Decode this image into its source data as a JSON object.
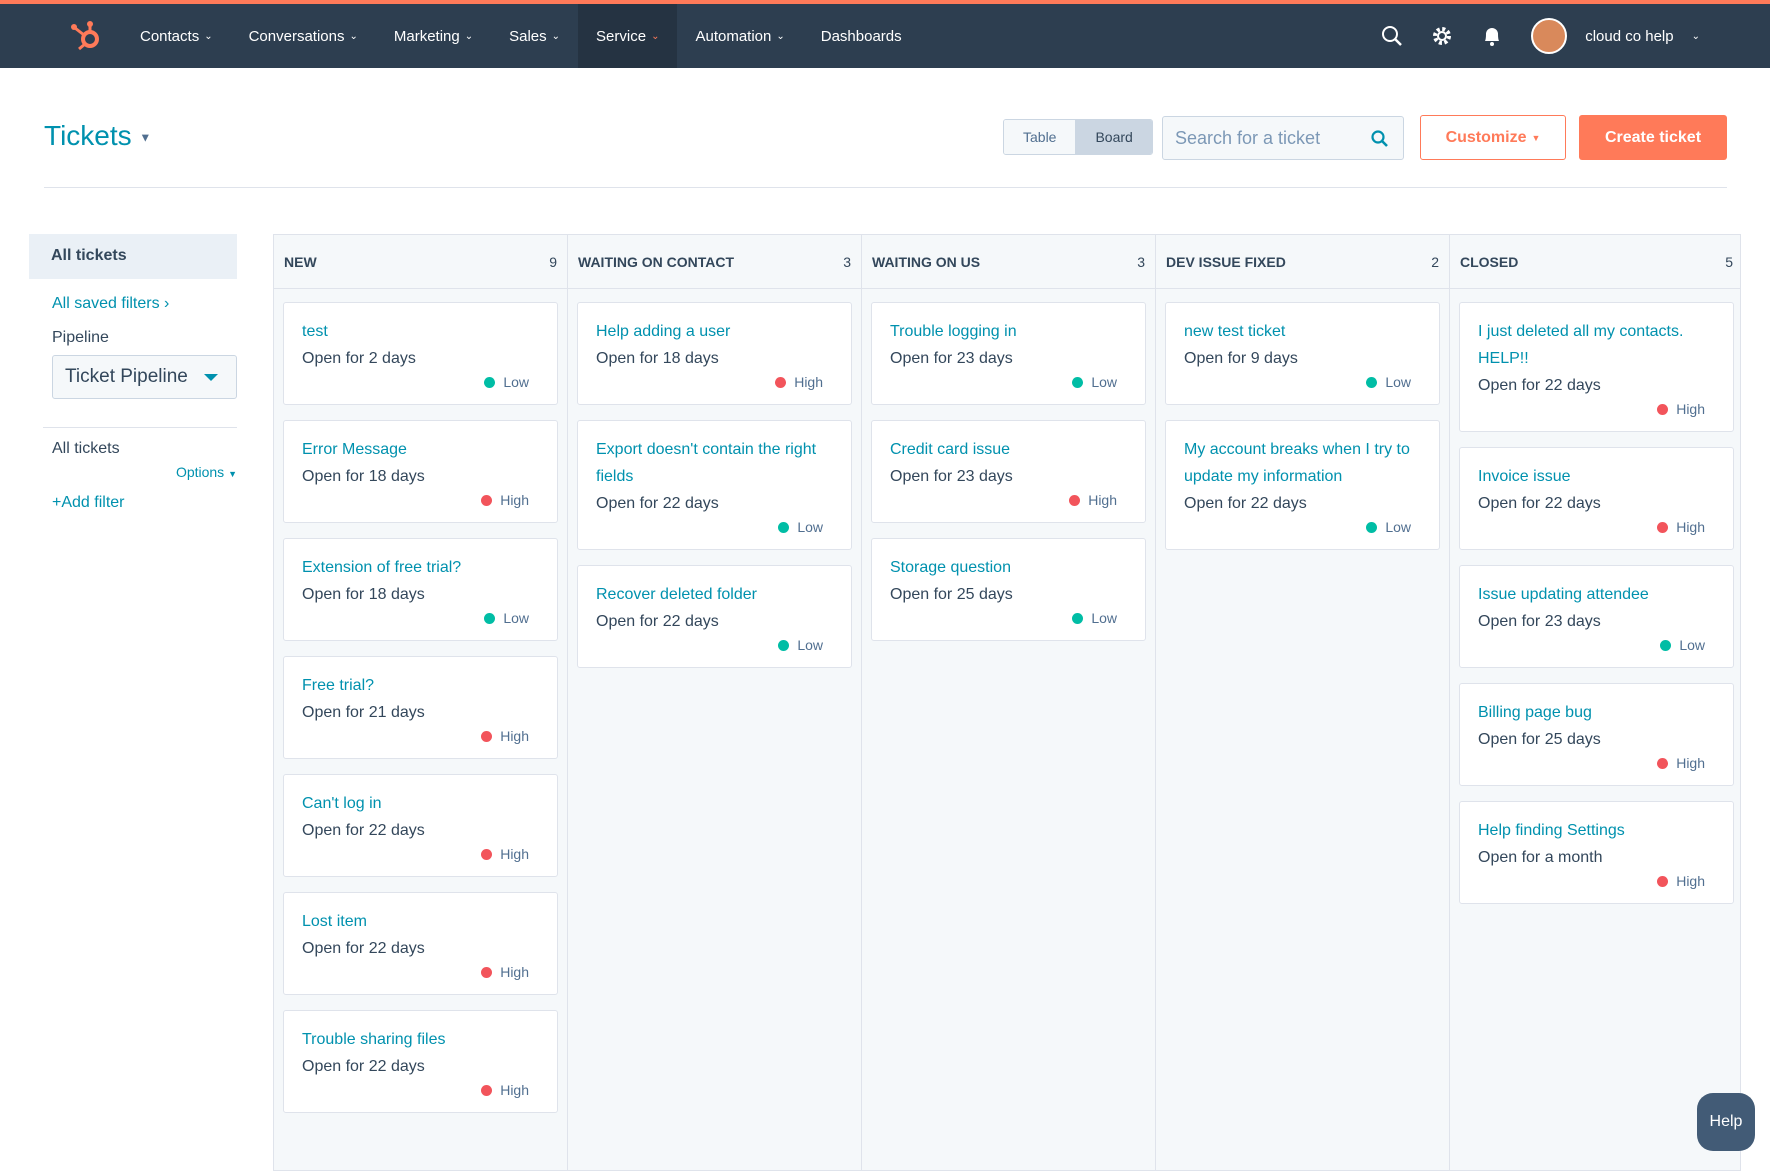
{
  "nav": {
    "items": [
      "Contacts",
      "Conversations",
      "Marketing",
      "Sales",
      "Service",
      "Automation",
      "Dashboards"
    ],
    "active": "Service",
    "user": "cloud co help"
  },
  "header": {
    "title": "Tickets",
    "view_toggle": [
      "Table",
      "Board"
    ],
    "active_view": "Board",
    "search_placeholder": "Search for a ticket",
    "customize": "Customize",
    "create": "Create ticket"
  },
  "sidebar": {
    "all_tickets": "All tickets",
    "saved_filters": "All saved filters",
    "pipeline_label": "Pipeline",
    "pipeline": "Ticket Pipeline",
    "section": "All tickets",
    "options": "Options",
    "add_filter": "+Add filter"
  },
  "board": {
    "columns": [
      {
        "name": "NEW",
        "count": 9,
        "cards": [
          {
            "title": "test",
            "status": "Open for 2 days",
            "priority": "Low"
          },
          {
            "title": "Error Message",
            "status": "Open for 18 days",
            "priority": "High"
          },
          {
            "title": "Extension of free trial?",
            "status": "Open for 18 days",
            "priority": "Low"
          },
          {
            "title": "Free trial?",
            "status": "Open for 21 days",
            "priority": "High"
          },
          {
            "title": "Can't log in",
            "status": "Open for 22 days",
            "priority": "High"
          },
          {
            "title": "Lost item",
            "status": "Open for 22 days",
            "priority": "High"
          },
          {
            "title": "Trouble sharing files",
            "status": "Open for 22 days",
            "priority": "High"
          }
        ]
      },
      {
        "name": "WAITING ON CONTACT",
        "count": 3,
        "cards": [
          {
            "title": "Help adding a user",
            "status": "Open for 18 days",
            "priority": "High"
          },
          {
            "title": "Export doesn't contain the right fields",
            "status": "Open for 22 days",
            "priority": "Low"
          },
          {
            "title": "Recover deleted folder",
            "status": "Open for 22 days",
            "priority": "Low"
          }
        ]
      },
      {
        "name": "WAITING ON US",
        "count": 3,
        "cards": [
          {
            "title": "Trouble logging in",
            "status": "Open for 23 days",
            "priority": "Low"
          },
          {
            "title": "Credit card issue",
            "status": "Open for 23 days",
            "priority": "High"
          },
          {
            "title": "Storage question",
            "status": "Open for 25 days",
            "priority": "Low"
          }
        ]
      },
      {
        "name": "DEV ISSUE FIXED",
        "count": 2,
        "cards": [
          {
            "title": "new test ticket",
            "status": "Open for 9 days",
            "priority": "Low"
          },
          {
            "title": "My account breaks when I try to update my information",
            "status": "Open for 22 days",
            "priority": "Low"
          }
        ]
      },
      {
        "name": "CLOSED",
        "count": 5,
        "cards": [
          {
            "title": "I just deleted all my contacts. HELP!!",
            "status": "Open for 22 days",
            "priority": "High"
          },
          {
            "title": "Invoice issue",
            "status": "Open for 22 days",
            "priority": "High"
          },
          {
            "title": "Issue updating attendee",
            "status": "Open for 23 days",
            "priority": "Low"
          },
          {
            "title": "Billing page bug",
            "status": "Open for 25 days",
            "priority": "High"
          },
          {
            "title": "Help finding Settings",
            "status": "Open for a month",
            "priority": "High"
          }
        ]
      }
    ]
  },
  "help": "Help"
}
